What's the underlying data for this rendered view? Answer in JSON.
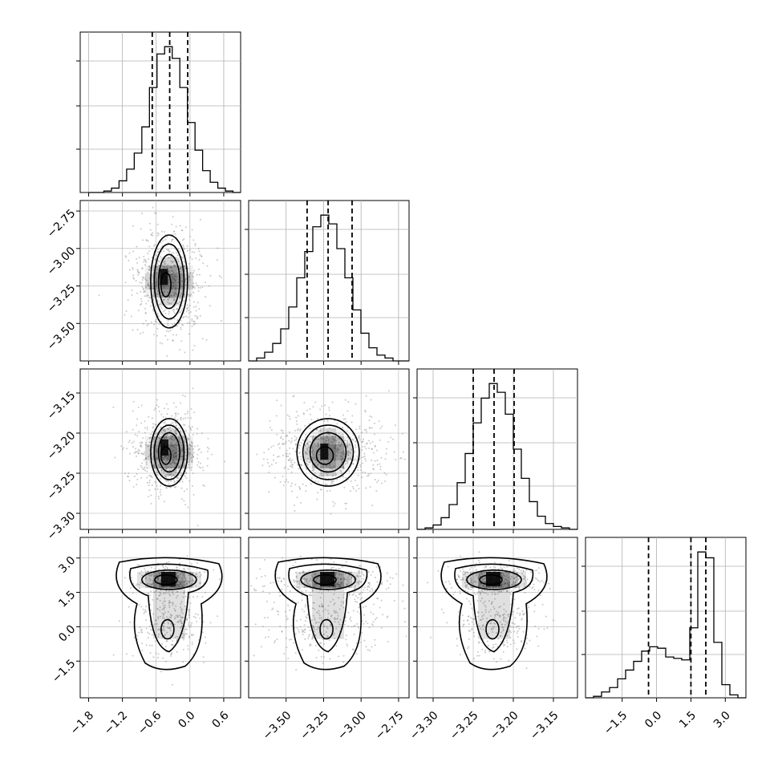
{
  "chart_data": {
    "type": "corner",
    "title": "",
    "params": [
      {
        "id": "p0",
        "range": [
          -1.95,
          0.9
        ],
        "ticks": [
          -1.8,
          -1.2,
          -0.6,
          0.0,
          0.6
        ],
        "tick_labels": [
          "−1.8",
          "−1.2",
          "−0.6",
          "0.0",
          "0.6"
        ],
        "quantiles": [
          -0.67,
          -0.36,
          -0.04
        ],
        "hist_bins": [
          -1.8,
          0.9
        ],
        "hist": [
          0,
          0,
          1,
          3,
          8,
          16,
          27,
          45,
          72,
          95,
          100,
          92,
          72,
          48,
          29,
          15,
          7,
          3,
          1,
          0
        ]
      },
      {
        "id": "p1",
        "range": [
          -3.75,
          -2.68
        ],
        "ticks": [
          -3.5,
          -3.25,
          -3.0,
          -2.75
        ],
        "tick_labels": [
          "−3.50",
          "−3.25",
          "−3.00",
          "−2.75"
        ],
        "quantiles": [
          -3.36,
          -3.22,
          -3.06
        ],
        "hist_bins": [
          -3.75,
          -2.68
        ],
        "hist": [
          0,
          2,
          6,
          12,
          22,
          37,
          57,
          75,
          92,
          100,
          94,
          77,
          57,
          35,
          19,
          9,
          4,
          2,
          0,
          0
        ]
      },
      {
        "id": "p2",
        "range": [
          -3.32,
          -3.12
        ],
        "ticks": [
          -3.3,
          -3.25,
          -3.2,
          -3.15
        ],
        "tick_labels": [
          "−3.30",
          "−3.25",
          "−3.20",
          "−3.15"
        ],
        "quantiles": [
          -3.25,
          -3.224,
          -3.199
        ],
        "hist_bins": [
          -3.32,
          -3.12
        ],
        "hist": [
          0,
          1,
          3,
          8,
          17,
          32,
          52,
          73,
          90,
          100,
          94,
          79,
          55,
          35,
          19,
          9,
          4,
          2,
          1,
          0
        ]
      },
      {
        "id": "p3",
        "range": [
          -3.1,
          3.9
        ],
        "ticks": [
          -1.5,
          0.0,
          1.5,
          3.0
        ],
        "tick_labels": [
          "−1.5",
          "0.0",
          "1.5",
          "3.0"
        ],
        "quantiles": [
          -0.35,
          1.5,
          2.15
        ],
        "hist_bins": [
          -3.1,
          3.9
        ],
        "hist": [
          0,
          1,
          4,
          7,
          13,
          19,
          25,
          32,
          35,
          34,
          28,
          27,
          26,
          48,
          100,
          96,
          38,
          9,
          2,
          0
        ]
      }
    ],
    "pairs": [
      {
        "x": "p0",
        "y": "p1",
        "center": [
          -0.37,
          -3.22
        ],
        "spread": [
          0.22,
          0.14
        ],
        "peak": [
          -0.45,
          -3.2
        ]
      },
      {
        "x": "p0",
        "y": "p2",
        "center": [
          -0.37,
          -3.224
        ],
        "spread": [
          0.22,
          0.019
        ],
        "peak": [
          -0.44,
          -3.22
        ]
      },
      {
        "x": "p1",
        "y": "p2",
        "center": [
          -3.22,
          -3.224
        ],
        "spread": [
          0.14,
          0.019
        ],
        "peak": [
          -3.24,
          -3.225
        ]
      },
      {
        "x": "p0",
        "y": "p3",
        "center": [
          -0.37,
          0.9
        ],
        "spread": [
          0.22,
          1.2
        ],
        "peak": [
          -0.45,
          2.0
        ],
        "bimodal": true
      },
      {
        "x": "p1",
        "y": "p3",
        "center": [
          -3.22,
          0.9
        ],
        "spread": [
          0.14,
          1.2
        ],
        "peak": [
          -3.22,
          2.0
        ],
        "bimodal": true
      },
      {
        "x": "p2",
        "y": "p3",
        "center": [
          -3.224,
          0.9
        ],
        "spread": [
          0.019,
          1.2
        ],
        "peak": [
          -3.23,
          2.0
        ],
        "bimodal": true
      }
    ],
    "line_color": "#000000",
    "grid_color": "#b0b0b0",
    "point_color": "#8a8a8a",
    "grid": true,
    "legend": "none"
  }
}
